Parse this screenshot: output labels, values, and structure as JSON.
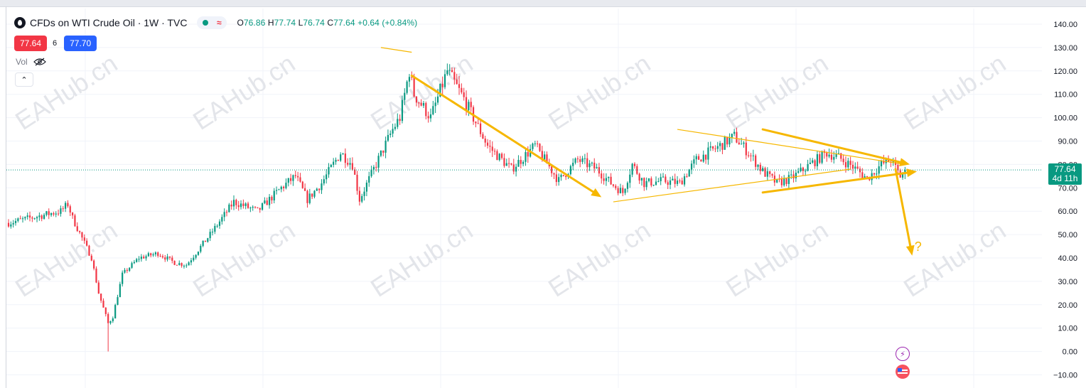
{
  "header": {
    "title": "CFDs on WTI Crude Oil · 1W · TVC",
    "ohlc": {
      "o_label": "O",
      "o": "76.86",
      "h_label": "H",
      "h": "77.74",
      "l_label": "L",
      "l": "76.74",
      "c_label": "C",
      "c": "77.64",
      "change": "+0.64 (+0.84%)"
    }
  },
  "trade": {
    "sell": "77.64",
    "spread": "6",
    "buy": "77.70"
  },
  "volume_label": "Vol",
  "price_badge": {
    "price": "77.64",
    "countdown": "4d 11h"
  },
  "watermark": "EAHub.cn",
  "annotation_question": "?",
  "colors": {
    "up": "#089981",
    "down": "#f23645",
    "drawing": "#f6b700",
    "grid": "#f0f3fa",
    "axis_text": "#131722",
    "price_line": "#089981"
  },
  "chart_data": {
    "type": "candlestick",
    "title": "CFDs on WTI Crude Oil · 1W · TVC",
    "ylim": [
      -14,
      146
    ],
    "y_ticks": [
      "140.00",
      "130.00",
      "120.00",
      "110.00",
      "100.00",
      "90.00",
      "80.00",
      "70.00",
      "60.00",
      "50.00",
      "40.00",
      "30.00",
      "20.00",
      "10.00",
      "0.00",
      "−10.00"
    ],
    "y_tick_values": [
      140,
      130,
      120,
      110,
      100,
      90,
      80,
      70,
      60,
      50,
      40,
      30,
      20,
      10,
      0,
      -10
    ],
    "last_price": 77.64,
    "grid": true,
    "anchors": [
      [
        0,
        55
      ],
      [
        22,
        60
      ],
      [
        25,
        63
      ],
      [
        27,
        57
      ],
      [
        35,
        40
      ],
      [
        38,
        25
      ],
      [
        42,
        12
      ],
      [
        44,
        15
      ],
      [
        48,
        33
      ],
      [
        55,
        40
      ],
      [
        63,
        42
      ],
      [
        70,
        38
      ],
      [
        75,
        37
      ],
      [
        85,
        50
      ],
      [
        95,
        64
      ],
      [
        105,
        60
      ],
      [
        115,
        70
      ],
      [
        121,
        75
      ],
      [
        126,
        65
      ],
      [
        132,
        72
      ],
      [
        140,
        85
      ],
      [
        145,
        80
      ],
      [
        148,
        65
      ],
      [
        154,
        78
      ],
      [
        162,
        95
      ],
      [
        165,
        100
      ],
      [
        169,
        120
      ],
      [
        171,
        110
      ],
      [
        178,
        100
      ],
      [
        185,
        120
      ],
      [
        192,
        108
      ],
      [
        202,
        88
      ],
      [
        212,
        78
      ],
      [
        222,
        88
      ],
      [
        232,
        73
      ],
      [
        240,
        82
      ],
      [
        248,
        78
      ],
      [
        254,
        72
      ],
      [
        259,
        68
      ],
      [
        263,
        80
      ],
      [
        268,
        72
      ],
      [
        276,
        73
      ],
      [
        283,
        72
      ],
      [
        290,
        82
      ],
      [
        300,
        88
      ],
      [
        306,
        92
      ],
      [
        312,
        85
      ],
      [
        318,
        77
      ],
      [
        324,
        72
      ],
      [
        330,
        74
      ],
      [
        338,
        80
      ],
      [
        345,
        85
      ],
      [
        350,
        83
      ],
      [
        356,
        79
      ],
      [
        362,
        74
      ],
      [
        368,
        80
      ],
      [
        372,
        82
      ],
      [
        376,
        75
      ],
      [
        378,
        76.86
      ]
    ],
    "drawings": {
      "trend_lines": [
        {
          "from": [
            157,
            130
          ],
          "to": [
            170,
            128
          ]
        },
        {
          "from": [
            255,
            64
          ],
          "to": [
            355,
            78
          ]
        },
        {
          "from": [
            282,
            95
          ],
          "to": [
            378,
            80
          ]
        }
      ],
      "arrows": [
        {
          "from": [
            170,
            118
          ],
          "to": [
            250,
            66
          ]
        },
        {
          "from": [
            318,
            95
          ],
          "to": [
            380,
            80
          ]
        },
        {
          "from": [
            318,
            68
          ],
          "to": [
            383,
            77
          ]
        },
        {
          "from": [
            374,
            78
          ],
          "to": [
            381,
            41
          ]
        }
      ],
      "question_at": [
        382,
        43
      ]
    }
  }
}
